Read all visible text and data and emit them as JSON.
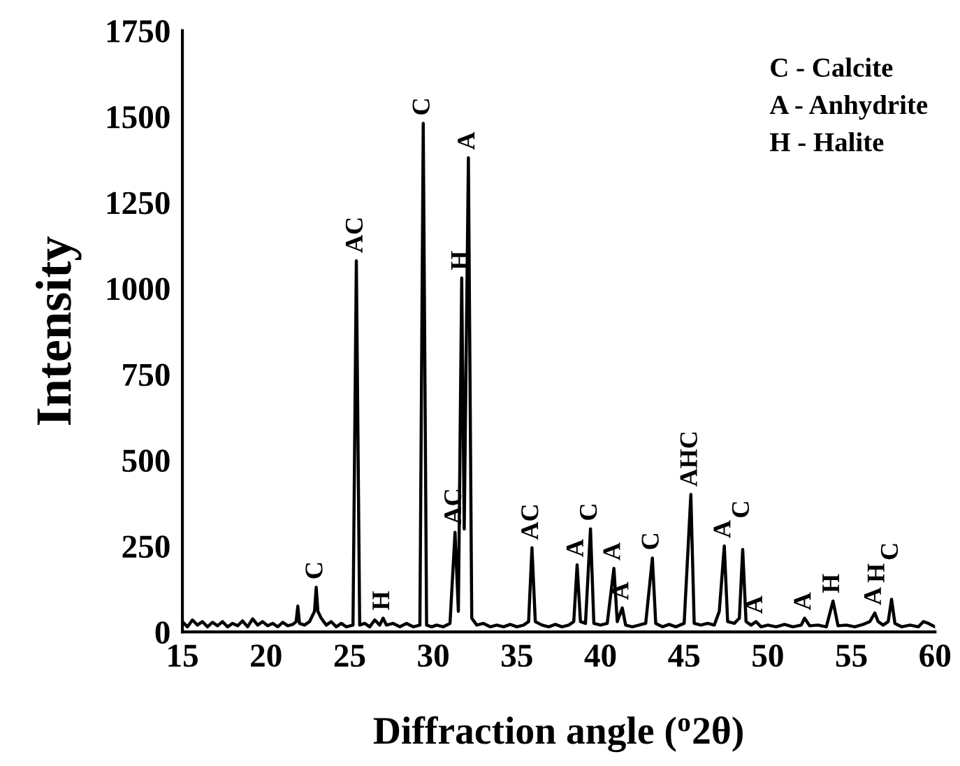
{
  "chart_data": {
    "type": "line",
    "xlabel": "Diffraction angle ($^{o}$2θ)",
    "ylabel": "Intensity",
    "xlim": [
      15,
      60
    ],
    "xticks": [
      15,
      20,
      25,
      30,
      35,
      40,
      45,
      50,
      55,
      60
    ],
    "ylim": [
      0,
      1750
    ],
    "yticks": [
      0,
      250,
      500,
      750,
      1000,
      1250,
      1500,
      1750
    ],
    "grid": false,
    "legend": false,
    "marker": "none",
    "line_style": "solid",
    "series": [
      {
        "color": "#000000",
        "x": [
          15.0,
          15.3,
          15.6,
          15.9,
          16.2,
          16.5,
          16.8,
          17.1,
          17.4,
          17.7,
          18.0,
          18.3,
          18.6,
          18.9,
          19.2,
          19.5,
          19.8,
          20.1,
          20.4,
          20.7,
          21.0,
          21.3,
          21.6,
          21.8,
          21.9,
          22.0,
          22.3,
          22.6,
          22.9,
          23.0,
          23.1,
          23.3,
          23.6,
          23.9,
          24.2,
          24.5,
          24.8,
          25.2,
          25.4,
          25.6,
          25.9,
          26.2,
          26.5,
          26.8,
          27.0,
          27.2,
          27.6,
          28.0,
          28.4,
          28.8,
          29.2,
          29.4,
          29.6,
          29.9,
          30.2,
          30.6,
          31.0,
          31.3,
          31.5,
          31.7,
          31.85,
          32.1,
          32.3,
          32.6,
          33.0,
          33.4,
          33.8,
          34.2,
          34.6,
          35.0,
          35.4,
          35.7,
          35.9,
          36.1,
          36.5,
          36.9,
          37.3,
          37.7,
          38.1,
          38.4,
          38.6,
          38.8,
          39.1,
          39.4,
          39.6,
          40.0,
          40.4,
          40.8,
          41.0,
          41.3,
          41.5,
          41.9,
          42.3,
          42.7,
          43.1,
          43.3,
          43.7,
          44.1,
          44.5,
          45.0,
          45.4,
          45.6,
          46.0,
          46.4,
          46.8,
          47.1,
          47.4,
          47.6,
          48.0,
          48.3,
          48.5,
          48.7,
          49.0,
          49.3,
          49.6,
          50.0,
          50.5,
          51.0,
          51.5,
          52.0,
          52.2,
          52.5,
          53.0,
          53.5,
          53.9,
          54.2,
          54.7,
          55.2,
          55.7,
          56.1,
          56.4,
          56.6,
          56.9,
          57.2,
          57.4,
          57.6,
          58.0,
          58.5,
          59.0,
          59.3,
          59.6,
          60.0
        ],
        "values": [
          30,
          15,
          35,
          20,
          30,
          15,
          28,
          18,
          30,
          15,
          25,
          18,
          32,
          15,
          38,
          20,
          30,
          18,
          25,
          15,
          28,
          18,
          22,
          30,
          75,
          25,
          20,
          30,
          60,
          130,
          60,
          40,
          20,
          30,
          15,
          25,
          15,
          20,
          1080,
          20,
          25,
          15,
          35,
          20,
          40,
          20,
          25,
          15,
          25,
          15,
          20,
          1480,
          20,
          15,
          20,
          15,
          25,
          290,
          60,
          1030,
          300,
          1380,
          40,
          20,
          25,
          15,
          20,
          15,
          22,
          15,
          20,
          30,
          245,
          30,
          20,
          15,
          22,
          15,
          20,
          30,
          195,
          30,
          25,
          300,
          25,
          20,
          25,
          185,
          30,
          70,
          20,
          15,
          20,
          25,
          215,
          25,
          15,
          22,
          15,
          25,
          400,
          25,
          20,
          25,
          20,
          60,
          250,
          30,
          25,
          40,
          240,
          30,
          20,
          30,
          15,
          20,
          15,
          22,
          15,
          20,
          40,
          18,
          20,
          15,
          90,
          18,
          20,
          15,
          22,
          30,
          55,
          30,
          20,
          30,
          95,
          25,
          15,
          20,
          15,
          30,
          25,
          15
        ]
      }
    ],
    "annotations": [
      "C - Calcite",
      "A - Anhydrite",
      "H - Halite",
      {
        "text": "C",
        "x": 23.0,
        "y": 130
      },
      {
        "text": "AC",
        "x": 25.4,
        "y": 1080
      },
      {
        "text": "H",
        "x": 27.0,
        "y": 40
      },
      {
        "text": "C",
        "x": 29.4,
        "y": 1480
      },
      {
        "text": "AC",
        "x": 31.3,
        "y": 290
      },
      {
        "text": "H",
        "x": 31.7,
        "y": 1030
      },
      {
        "text": "A",
        "x": 32.1,
        "y": 1380
      },
      {
        "text": "AC",
        "x": 35.9,
        "y": 245
      },
      {
        "text": "A",
        "x": 38.6,
        "y": 195
      },
      {
        "text": "C",
        "x": 39.4,
        "y": 300
      },
      {
        "text": "A",
        "x": 40.8,
        "y": 185
      },
      {
        "text": "A",
        "x": 41.3,
        "y": 70
      },
      {
        "text": "C",
        "x": 43.1,
        "y": 215
      },
      {
        "text": "AHC",
        "x": 45.4,
        "y": 400
      },
      {
        "text": "A",
        "x": 47.4,
        "y": 250
      },
      {
        "text": "C",
        "x": 48.5,
        "y": 240
      },
      {
        "text": "A",
        "x": 49.3,
        "y": 30
      },
      {
        "text": "A",
        "x": 52.2,
        "y": 40
      },
      {
        "text": "H",
        "x": 53.9,
        "y": 90
      },
      {
        "text": "A",
        "x": 56.4,
        "y": 55
      },
      {
        "text": "H",
        "x": 56.6,
        "y": 30
      },
      {
        "text": "C",
        "x": 57.4,
        "y": 95
      }
    ]
  }
}
